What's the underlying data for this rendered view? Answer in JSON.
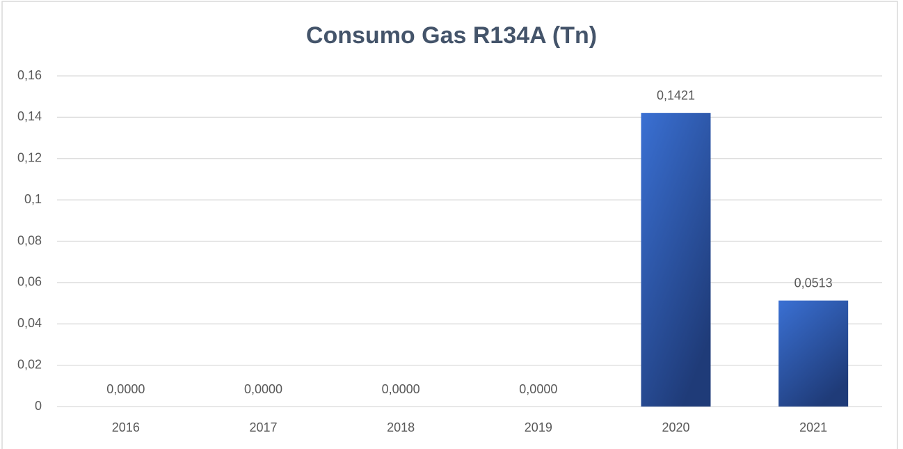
{
  "chart_data": {
    "type": "bar",
    "title": "Consumo Gas R134A (Tn)",
    "categories": [
      "2016",
      "2017",
      "2018",
      "2019",
      "2020",
      "2021"
    ],
    "values": [
      0,
      0,
      0,
      0,
      0.1421,
      0.0513
    ],
    "value_labels": [
      "0,0000",
      "0,0000",
      "0,0000",
      "0,0000",
      "0,1421",
      "0,0513"
    ],
    "color": "#3566c4",
    "ylim": [
      0,
      0.16
    ],
    "yticks": [
      0,
      {
        "value": 0.02,
        "label": "0,02"
      },
      {
        "value": 0.04,
        "label": "0,04"
      },
      {
        "value": 0.06,
        "label": "0,06"
      },
      {
        "value": 0.08,
        "label": "0,08"
      },
      {
        "value": 0.1,
        "label": "0,1"
      },
      {
        "value": 0.12,
        "label": "0,12"
      },
      {
        "value": 0.14,
        "label": "0,14"
      },
      {
        "value": 0.16,
        "label": "0,16"
      }
    ],
    "grid": true
  }
}
